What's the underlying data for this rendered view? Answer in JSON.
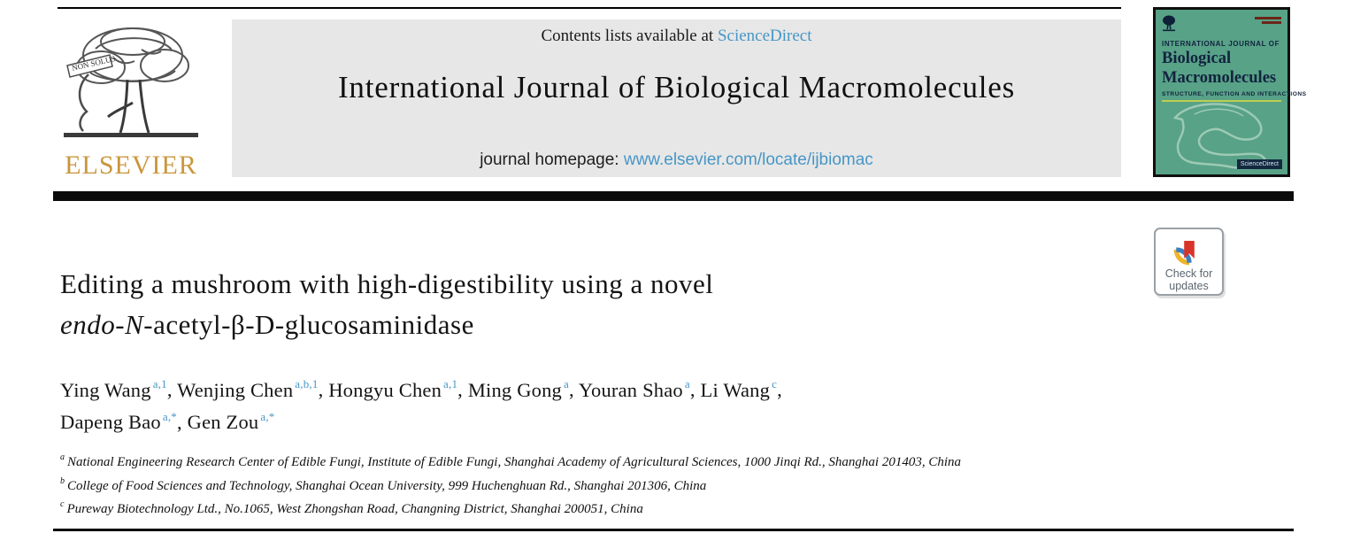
{
  "header": {
    "top_note_prefix": "Contents lists available at ",
    "top_note_link": "ScienceDirect",
    "journal_title": "International Journal of Biological Macromolecules",
    "homepage_prefix": "journal homepage: ",
    "homepage_link": "www.elsevier.com/locate/ijbiomac",
    "elsevier_wordmark": "ELSEVIER",
    "elsevier_banner_text": "NON SOLUS"
  },
  "cover": {
    "kicker": "INTERNATIONAL JOURNAL OF",
    "title_line1": "Biological",
    "title_line2": "Macromolecules",
    "subtitle": "STRUCTURE, FUNCTION AND INTERACTIONS",
    "badge": "ScienceDirect",
    "colors": {
      "background": "#58A287",
      "accent_line": "#BCD04F",
      "text": "#12233F"
    }
  },
  "check_badge": {
    "line1": "Check for",
    "line2": "updates"
  },
  "article": {
    "title_line1": "Editing a mushroom with high-digestibility using a novel",
    "title_line2_italic": "endo-N",
    "title_line2_rest": "-acetyl-β-D-glucosaminidase",
    "authors": [
      {
        "name": "Ying Wang",
        "sup": "a,1",
        "break_after": false
      },
      {
        "name": "Wenjing Chen",
        "sup": "a,b,1",
        "break_after": false
      },
      {
        "name": "Hongyu Chen",
        "sup": "a,1",
        "break_after": false
      },
      {
        "name": "Ming Gong",
        "sup": "a",
        "break_after": false
      },
      {
        "name": "Youran Shao",
        "sup": "a",
        "break_after": false
      },
      {
        "name": "Li Wang",
        "sup": "c",
        "break_after": true
      },
      {
        "name": "Dapeng Bao",
        "sup": "a,*",
        "break_after": false
      },
      {
        "name": "Gen Zou",
        "sup": "a,*",
        "break_after": false
      }
    ],
    "affiliations": [
      {
        "sup": "a",
        "text": "National Engineering Research Center of Edible Fungi, Institute of Edible Fungi, Shanghai Academy of Agricultural Sciences, 1000 Jinqi Rd., Shanghai 201403, China"
      },
      {
        "sup": "b",
        "text": "College of Food Sciences and Technology, Shanghai Ocean University, 999 Huchenghuan Rd., Shanghai 201306, China"
      },
      {
        "sup": "c",
        "text": "Pureway Biotechnology Ltd., No.1065, West Zhongshan Road, Changning District, Shanghai 200051, China"
      }
    ]
  },
  "colors": {
    "link_blue": "#4796C6",
    "elsevier_orange": "#C9963C"
  }
}
